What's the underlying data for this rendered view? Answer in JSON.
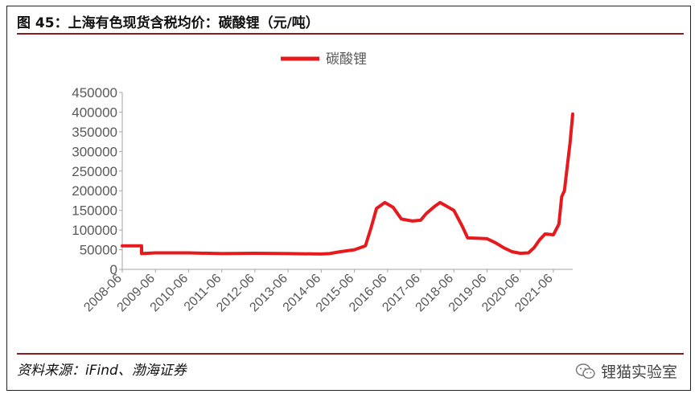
{
  "title": "图 45：上海有色现货含税均价：碳酸锂（元/吨）",
  "source": "资料来源：iFind、渤海证券",
  "watermark": {
    "text": "锂猫实验室",
    "icon": "wechat-icon"
  },
  "colors": {
    "series": "#e8191c",
    "rule": "#8a1c1c",
    "axis": "#a6a6a6",
    "text": "#595959"
  },
  "chart_data": {
    "type": "line",
    "legend": {
      "entries": [
        "碳酸锂"
      ],
      "position": "top-center"
    },
    "ylim": [
      0,
      450000
    ],
    "yticks": [
      "0",
      "50000",
      "100000",
      "150000",
      "200000",
      "250000",
      "300000",
      "350000",
      "400000",
      "450000"
    ],
    "xticks": [
      "2008-06",
      "2009-06",
      "2010-06",
      "2011-06",
      "2012-06",
      "2013-06",
      "2014-06",
      "2015-06",
      "2016-06",
      "2017-06",
      "2018-06",
      "2019-06",
      "2020-06",
      "2021-06"
    ],
    "grid": false,
    "series": [
      {
        "name": "碳酸锂",
        "points": [
          [
            "2008-06",
            60000
          ],
          [
            "2009-01",
            60000
          ],
          [
            "2009-01",
            40000
          ],
          [
            "2009-06",
            42000
          ],
          [
            "2010-06",
            42000
          ],
          [
            "2011-06",
            40000
          ],
          [
            "2012-06",
            41000
          ],
          [
            "2013-06",
            40000
          ],
          [
            "2014-06",
            39000
          ],
          [
            "2014-09",
            40000
          ],
          [
            "2015-01",
            45000
          ],
          [
            "2015-06",
            50000
          ],
          [
            "2015-10",
            60000
          ],
          [
            "2015-12",
            105000
          ],
          [
            "2016-02",
            155000
          ],
          [
            "2016-05",
            170000
          ],
          [
            "2016-08",
            158000
          ],
          [
            "2016-11",
            128000
          ],
          [
            "2017-03",
            123000
          ],
          [
            "2017-06",
            125000
          ],
          [
            "2017-08",
            142000
          ],
          [
            "2017-11",
            160000
          ],
          [
            "2018-01",
            170000
          ],
          [
            "2018-03",
            162000
          ],
          [
            "2018-06",
            150000
          ],
          [
            "2018-09",
            110000
          ],
          [
            "2018-11",
            80000
          ],
          [
            "2019-03",
            79000
          ],
          [
            "2019-06",
            78000
          ],
          [
            "2019-09",
            68000
          ],
          [
            "2019-12",
            55000
          ],
          [
            "2020-03",
            45000
          ],
          [
            "2020-06",
            41000
          ],
          [
            "2020-09",
            42000
          ],
          [
            "2020-11",
            55000
          ],
          [
            "2021-01",
            75000
          ],
          [
            "2021-03",
            90000
          ],
          [
            "2021-06",
            88000
          ],
          [
            "2021-08",
            115000
          ],
          [
            "2021-09",
            185000
          ],
          [
            "2021-10",
            200000
          ],
          [
            "2021-11",
            260000
          ],
          [
            "2021-12",
            320000
          ],
          [
            "2022-01",
            395000
          ]
        ]
      }
    ]
  }
}
